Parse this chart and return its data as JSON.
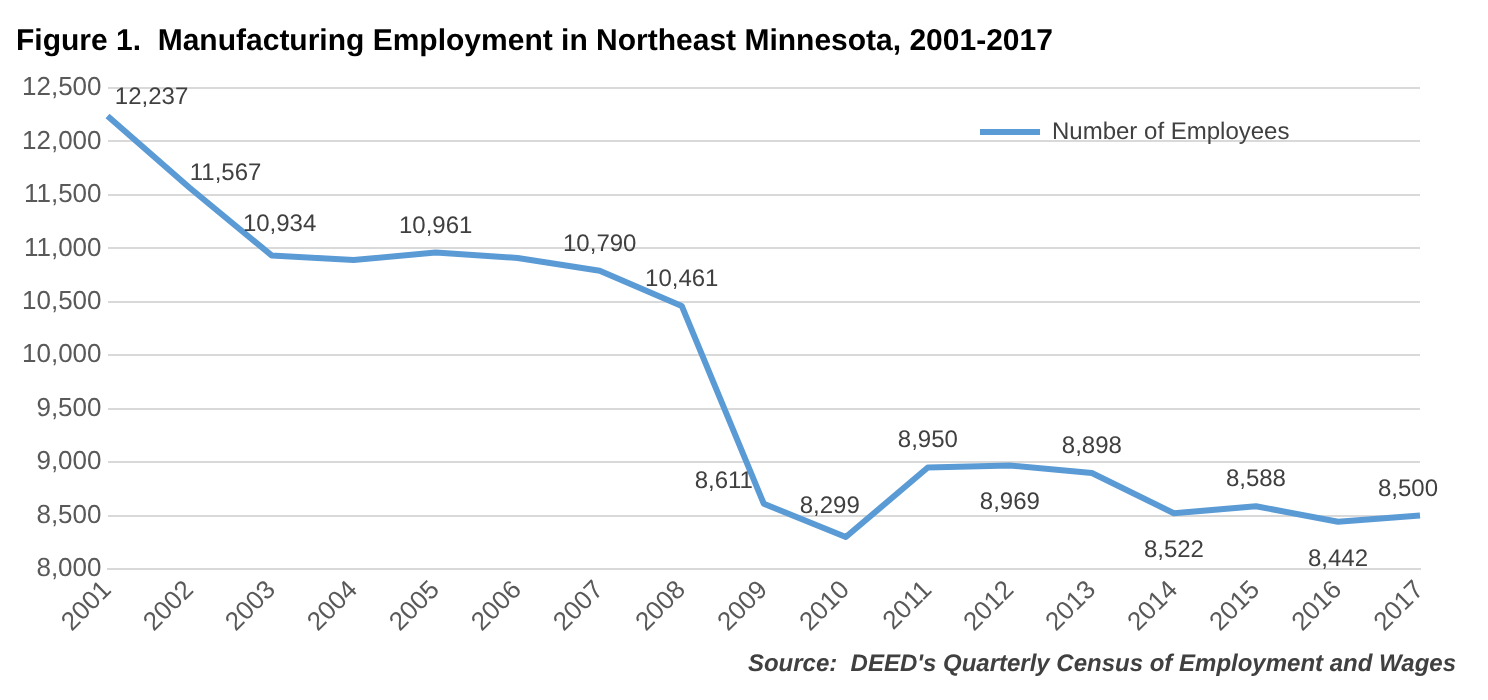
{
  "chart_data": {
    "type": "line",
    "title": "Figure 1.  Manufacturing Employment in Northeast Minnesota, 2001-2017",
    "categories": [
      "2001",
      "2002",
      "2003",
      "2004",
      "2005",
      "2006",
      "2007",
      "2008",
      "2009",
      "2010",
      "2011",
      "2012",
      "2013",
      "2014",
      "2015",
      "2016",
      "2017"
    ],
    "series": [
      {
        "name": "Number of Employees",
        "color": "#5b9bd5",
        "values": [
          12237,
          11567,
          10934,
          10890,
          10961,
          10910,
          10790,
          10461,
          8611,
          8299,
          8950,
          8969,
          8898,
          8522,
          8588,
          8442,
          8500
        ],
        "value_labels": [
          "12,237",
          "11,567",
          "10,934",
          null,
          "10,961",
          null,
          "10,790",
          "10,461",
          "8,611",
          "8,299",
          "8,950",
          "8,969",
          "8,898",
          "8,522",
          "8,588",
          "8,442",
          "8,500"
        ]
      }
    ],
    "ylim": [
      8000,
      12500
    ],
    "yticks": [
      {
        "value": 8000,
        "label": "8,000"
      },
      {
        "value": 8500,
        "label": "8,500"
      },
      {
        "value": 9000,
        "label": "9,000"
      },
      {
        "value": 9500,
        "label": "9,500"
      },
      {
        "value": 10000,
        "label": "10,000"
      },
      {
        "value": 10500,
        "label": "10,500"
      },
      {
        "value": 11000,
        "label": "11,000"
      },
      {
        "value": 11500,
        "label": "11,500"
      },
      {
        "value": 12000,
        "label": "12,000"
      },
      {
        "value": 12500,
        "label": "12,500"
      }
    ],
    "grid": "y",
    "legend": "top right",
    "marker": "none",
    "line_style": "solid",
    "annotations": [
      "Source:  DEED's Quarterly Census of Employment and Wages"
    ]
  }
}
